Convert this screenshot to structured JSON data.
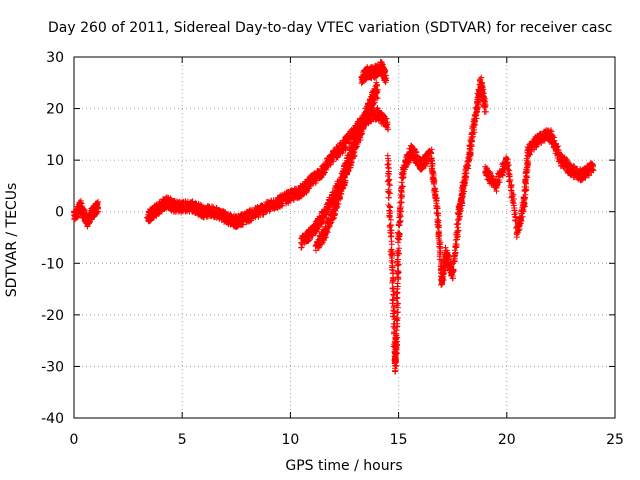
{
  "chart_data": {
    "type": "scatter",
    "title": "Day 260 of 2011, Sidereal Day-to-day VTEC variation (SDTVAR) for receiver casc",
    "xlabel": "GPS time / hours",
    "ylabel": "SDTVAR / TECUs",
    "xlim": [
      0,
      25
    ],
    "ylim": [
      -40,
      30
    ],
    "xticks": [
      0,
      5,
      10,
      15,
      20,
      25
    ],
    "yticks": [
      -40,
      -30,
      -20,
      -10,
      0,
      10,
      20,
      30
    ],
    "grid": true,
    "marker": "+",
    "series": [
      {
        "name": "SDTVAR",
        "color": "#ff0000",
        "segments": [
          {
            "x": [
              0.0,
              0.3,
              0.6,
              0.9,
              1.1
            ],
            "y": [
              -1,
              1,
              -2,
              0,
              1
            ]
          },
          {
            "x": [
              3.4,
              3.7,
              4.0,
              4.3,
              4.6,
              5.0,
              5.5,
              6.0,
              6.5,
              7.0,
              7.5,
              8.0,
              8.5,
              9.0,
              9.5,
              10.0,
              10.5,
              11.0,
              11.5,
              12.0,
              12.5,
              13.0,
              13.5,
              14.0,
              14.5
            ],
            "y": [
              -1,
              0,
              1,
              2,
              1,
              1,
              1,
              0,
              0,
              -1,
              -2,
              -1,
              0,
              1,
              2,
              3,
              4,
              6,
              8,
              11,
              13,
              16,
              18,
              19,
              17
            ]
          },
          {
            "x": [
              10.5,
              11.0,
              11.5,
              12.0,
              12.5,
              13.0,
              13.5,
              14.0
            ],
            "y": [
              -6,
              -4,
              -1,
              3,
              8,
              14,
              19,
              23
            ]
          },
          {
            "x": [
              11.2,
              11.6,
              12.0,
              12.4,
              12.8,
              13.2,
              13.6,
              14.0
            ],
            "y": [
              -7,
              -4,
              0,
              5,
              10,
              15,
              20,
              24
            ]
          },
          {
            "x": [
              13.3,
              13.6,
              13.9,
              14.2,
              14.4
            ],
            "y": [
              26,
              27,
              27,
              28,
              26
            ]
          },
          {
            "x": [
              14.5,
              14.7,
              14.85,
              14.9,
              15.0,
              15.2,
              15.6,
              16.0,
              16.5
            ],
            "y": [
              10,
              -10,
              -30,
              -25,
              -5,
              8,
              12,
              9,
              11
            ]
          },
          {
            "x": [
              16.5,
              16.8,
              17.0,
              17.2,
              17.5,
              17.8,
              18.0,
              18.3,
              18.6,
              18.8,
              19.0
            ],
            "y": [
              10,
              0,
              -14,
              -8,
              -12,
              0,
              5,
              12,
              20,
              25,
              20
            ]
          },
          {
            "x": [
              19.0,
              19.5,
              20.0,
              20.5,
              20.8,
              21.0,
              21.5,
              22.0,
              22.5,
              23.0,
              23.5,
              24.0
            ],
            "y": [
              8,
              5,
              10,
              -4,
              2,
              12,
              14,
              15,
              10,
              8,
              7,
              9
            ]
          }
        ]
      }
    ]
  }
}
